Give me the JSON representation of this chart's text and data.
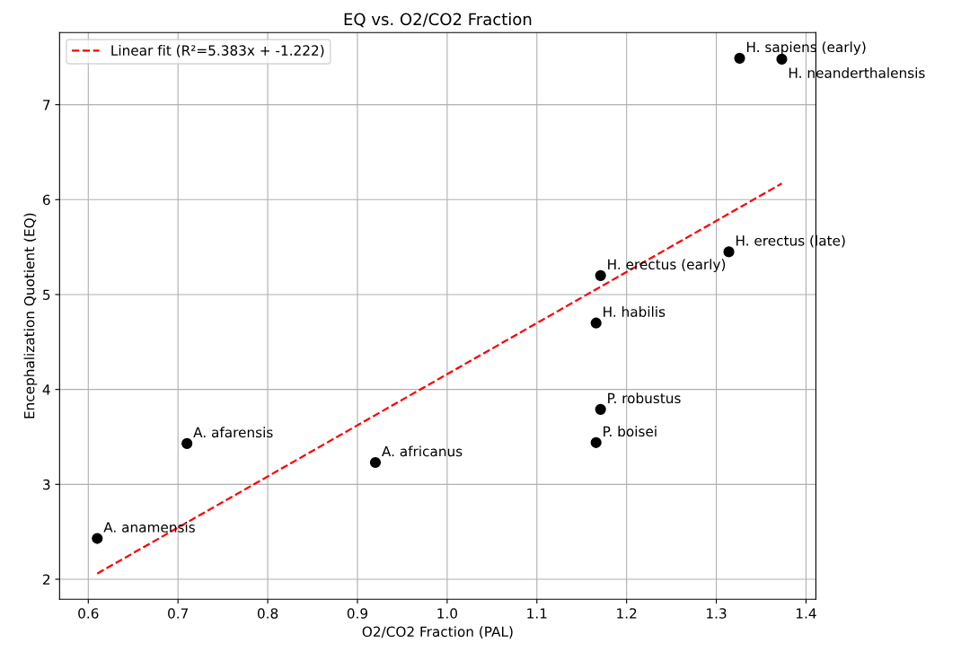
{
  "chart_data": {
    "type": "scatter",
    "title": "EQ vs. O2/CO2 Fraction",
    "xlabel": "O2/CO2 Fraction (PAL)",
    "ylabel": "Encephalization Quotient (EQ)",
    "series": [
      {
        "color": "#000000",
        "marker": "circle",
        "x": [
          0.61,
          0.71,
          0.92,
          1.166,
          1.171,
          1.166,
          1.171,
          1.314,
          1.326,
          1.373
        ],
        "values": [
          2.43,
          3.43,
          3.23,
          3.44,
          3.79,
          4.7,
          5.2,
          5.45,
          7.49,
          7.48
        ]
      },
      {
        "type": "line",
        "name": "Linear fit (R²=5.383x + -1.222)",
        "color": "#ff0000",
        "line_style": "dashed",
        "marker": "none",
        "x": [
          0.61,
          1.373
        ],
        "values": [
          2.06,
          6.17
        ]
      }
    ],
    "annotations": [
      {
        "text": "A. anamensis",
        "x": 0.61,
        "y": 2.43
      },
      {
        "text": "A. afarensis",
        "x": 0.71,
        "y": 3.43
      },
      {
        "text": "A. africanus",
        "x": 0.92,
        "y": 3.23
      },
      {
        "text": "P. boisei",
        "x": 1.166,
        "y": 3.44
      },
      {
        "text": "P. robustus",
        "x": 1.171,
        "y": 3.79
      },
      {
        "text": "H. habilis",
        "x": 1.166,
        "y": 4.7
      },
      {
        "text": "H. erectus (early)",
        "x": 1.171,
        "y": 5.2
      },
      {
        "text": "H. erectus (late)",
        "x": 1.314,
        "y": 5.45
      },
      {
        "text": "H. sapiens (early)",
        "x": 1.326,
        "y": 7.49
      },
      {
        "text": "H. neanderthalensis",
        "x": 1.373,
        "y": 7.48
      }
    ],
    "xlim": [
      0.568,
      1.411
    ],
    "ylim": [
      1.79,
      7.76
    ],
    "xticks": [
      0.6,
      0.7,
      0.8,
      0.9,
      {
        "value": 1.0,
        "label": "1.0"
      },
      1.1,
      1.2,
      1.3,
      1.4
    ],
    "yticks": [
      2,
      3,
      4,
      5,
      6,
      7
    ],
    "grid": true,
    "legend": "top left"
  }
}
